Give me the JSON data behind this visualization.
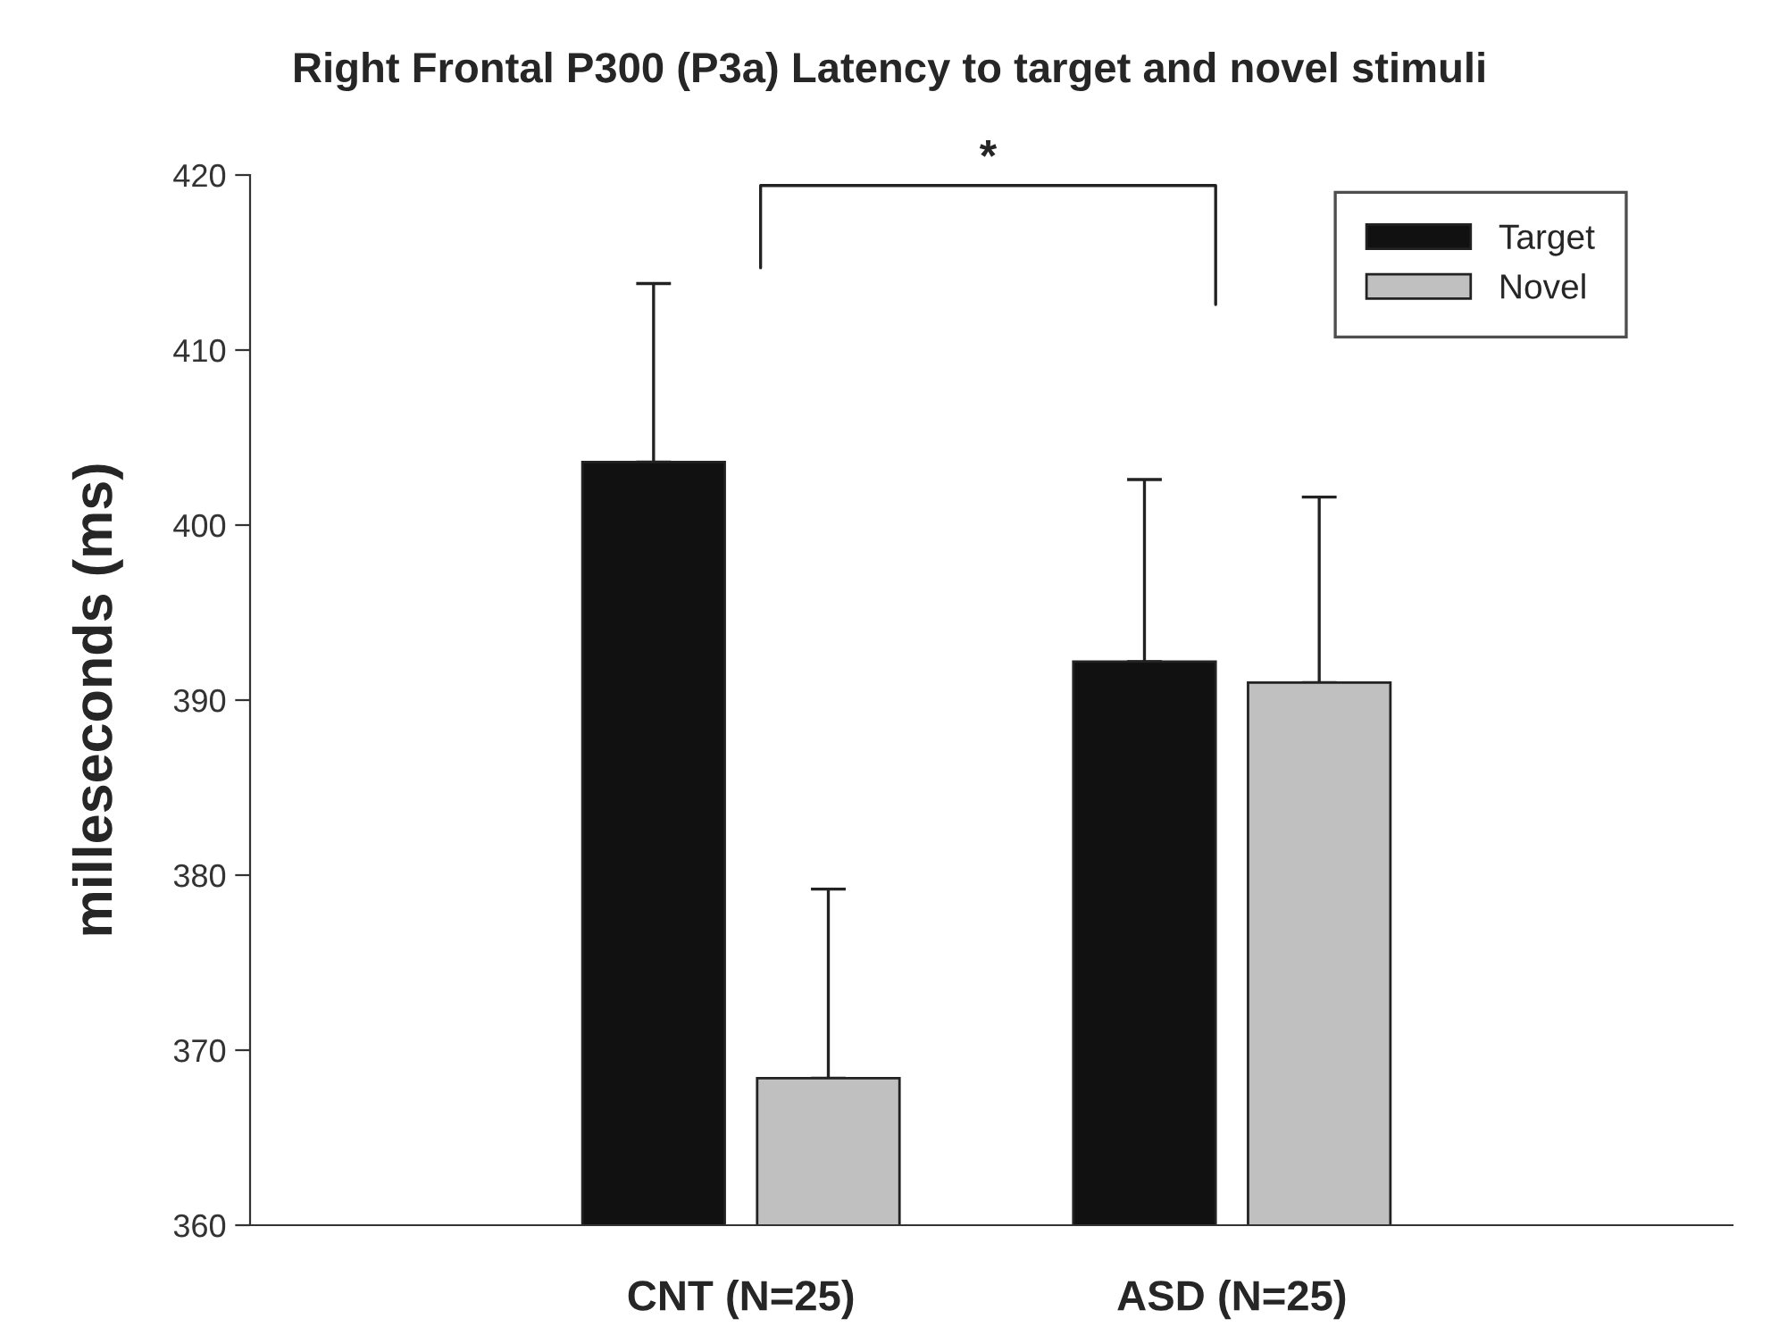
{
  "chart_data": {
    "type": "bar",
    "title": "Right Frontal P300 (P3a) Latency to target and novel stimuli",
    "ylabel": "milleseconds (ms)",
    "categories": [
      "CNT (N=25)",
      "ASD (N=25)"
    ],
    "series": [
      {
        "name": "Target",
        "color": "#111111",
        "values": [
          403.6,
          392.2
        ],
        "errors": [
          [
            403.6,
            413.8
          ],
          [
            392.2,
            402.6
          ]
        ]
      },
      {
        "name": "Novel",
        "color": "#c0c0c0",
        "values": [
          368.4,
          391.0
        ],
        "errors": [
          [
            368.4,
            379.2
          ],
          [
            391.0,
            401.6
          ]
        ]
      }
    ],
    "ylim": [
      360,
      420
    ],
    "yticks": [
      360,
      370,
      380,
      390,
      400,
      410,
      420
    ],
    "grid": false,
    "legend": "top right",
    "annotations": [
      "*"
    ]
  }
}
